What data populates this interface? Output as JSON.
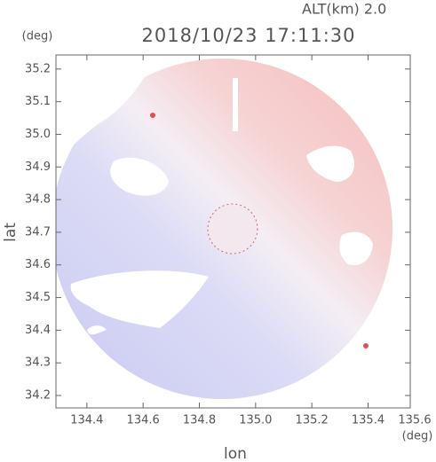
{
  "chart_data": {
    "type": "radar-image",
    "title": "2018/10/23 17:11:30",
    "altitude": "ALT(km) 2.0",
    "x_label": "lon",
    "y_label": "lat",
    "x_unit": "(deg)",
    "y_unit": "(deg)",
    "xlim": [
      134.29,
      135.55
    ],
    "ylim": [
      34.162,
      35.243
    ],
    "xticks": [
      134.4,
      134.6,
      134.8,
      {
        "value": 135,
        "label": "135.0"
      },
      135.2,
      135.4,
      135.6
    ],
    "yticks": [
      34.2,
      34.3,
      34.4,
      34.5,
      34.6,
      34.7,
      34.8,
      34.9,
      {
        "value": 35,
        "label": "35.0"
      },
      35.1,
      35.2
    ]
  }
}
